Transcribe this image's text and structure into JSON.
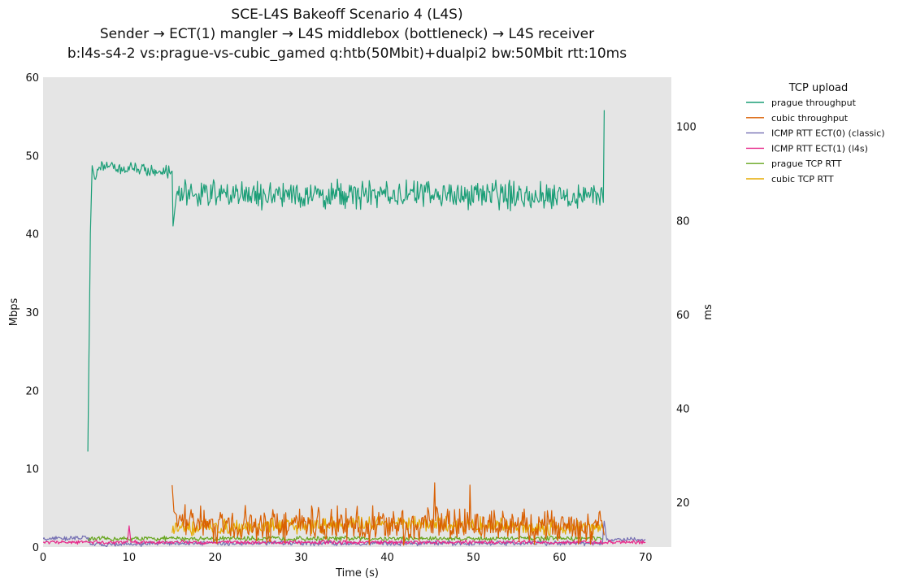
{
  "chart_data": {
    "type": "line",
    "title": [
      "SCE-L4S Bakeoff Scenario 4 (L4S)",
      "Sender → ECT(1) mangler → L4S middlebox (bottleneck) → L4S receiver",
      "b:l4s-s4-2 vs:prague-vs-cubic_gamed q:htb(50Mbit)+dualpi2 bw:50Mbit rtt:10ms"
    ],
    "xlabel": "Time (s)",
    "ylabel": "Mbps",
    "y2label": "ms",
    "xlim": [
      0,
      73
    ],
    "ylim": [
      0,
      60
    ],
    "y2lim": [
      10.5,
      110.5
    ],
    "xticks": [
      0,
      10,
      20,
      30,
      40,
      50,
      60,
      70
    ],
    "yticks": [
      0,
      10,
      20,
      30,
      40,
      50,
      60
    ],
    "y2ticks": [
      20,
      40,
      60,
      80,
      100
    ],
    "grid": false,
    "background": "#e5e5e5",
    "legend": {
      "title": "TCP upload",
      "placement": "outside-top-right",
      "entries": [
        "prague throughput",
        "cubic throughput",
        "ICMP RTT ECT(0) (classic)",
        "ICMP RTT ECT(1) (l4s)",
        "prague TCP RTT",
        "cubic TCP RTT"
      ]
    },
    "series": [
      {
        "name": "prague throughput",
        "axis": "left",
        "color": "#1b9e77",
        "profile": [
          [
            5.2,
            12.2
          ],
          [
            5.5,
            40.0
          ],
          [
            5.7,
            48.7
          ],
          [
            6.0,
            47.0
          ],
          [
            6.5,
            48.5
          ],
          [
            15.0,
            48.0
          ],
          [
            15.1,
            41.0
          ],
          [
            15.5,
            45.0
          ],
          [
            65.0,
            45.0
          ],
          [
            65.1,
            44.0
          ],
          [
            65.2,
            55.8
          ]
        ],
        "noise": [
          [
            6.0,
            15.0,
            1.0
          ],
          [
            15.5,
            65.0,
            2.2
          ]
        ]
      },
      {
        "name": "cubic throughput",
        "axis": "left",
        "color": "#d95f02",
        "profile": [
          [
            15.0,
            7.9
          ],
          [
            15.2,
            4.5
          ],
          [
            16.0,
            3.5
          ],
          [
            20.0,
            2.8
          ],
          [
            65.0,
            2.8
          ],
          [
            65.2,
            1.5
          ]
        ],
        "noise": [
          [
            15.5,
            65.0,
            2.6
          ]
        ],
        "peaks": [
          [
            23.5,
            5.3
          ],
          [
            45.5,
            8.2
          ],
          [
            49.6,
            7.9
          ]
        ]
      },
      {
        "name": "ICMP RTT ECT(0) (classic)",
        "axis": "right",
        "color": "#7570b3",
        "profile": [
          [
            0.0,
            12.2
          ],
          [
            5.2,
            12.5
          ],
          [
            5.5,
            11.0
          ],
          [
            15.0,
            11.3
          ],
          [
            65.0,
            11.3
          ],
          [
            65.2,
            16.0
          ],
          [
            65.5,
            12.0
          ],
          [
            70.0,
            12.0
          ]
        ],
        "noise": [
          [
            0.0,
            70.0,
            0.6
          ]
        ]
      },
      {
        "name": "ICMP RTT ECT(1) (l4s)",
        "axis": "right",
        "color": "#e7298a",
        "profile": [
          [
            0.0,
            11.5
          ],
          [
            9.8,
            11.5
          ],
          [
            10.0,
            15.0
          ],
          [
            10.2,
            11.5
          ],
          [
            70.0,
            11.5
          ]
        ],
        "noise": [
          [
            0.0,
            70.0,
            0.5
          ]
        ]
      },
      {
        "name": "prague TCP RTT",
        "axis": "right",
        "color": "#66a61e",
        "profile": [
          [
            5.2,
            12.2
          ],
          [
            15.0,
            12.3
          ],
          [
            65.0,
            12.3
          ]
        ],
        "noise": [
          [
            5.2,
            65.0,
            0.6
          ]
        ]
      },
      {
        "name": "cubic TCP RTT",
        "axis": "right",
        "color": "#e6ab02",
        "profile": [
          [
            15.0,
            13.5
          ],
          [
            16.0,
            14.5
          ],
          [
            40.0,
            15.5
          ],
          [
            65.0,
            14.5
          ]
        ],
        "noise": [
          [
            15.0,
            65.0,
            2.0
          ]
        ]
      }
    ]
  }
}
